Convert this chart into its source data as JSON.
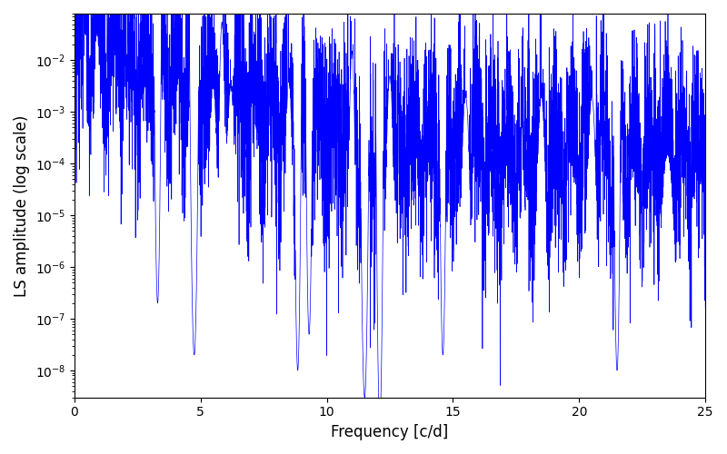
{
  "title": "",
  "xlabel": "Frequency [c/d]",
  "ylabel": "LS amplitude (log scale)",
  "line_color": "#0000ff",
  "line_width": 0.5,
  "xlim": [
    0,
    25
  ],
  "ylim": [
    3e-09,
    0.08
  ],
  "freq_min": 0.0,
  "freq_max": 25.0,
  "n_points": 5000,
  "background_color": "#ffffff",
  "figsize": [
    8.0,
    5.0
  ],
  "dpi": 100,
  "seed": 12345
}
